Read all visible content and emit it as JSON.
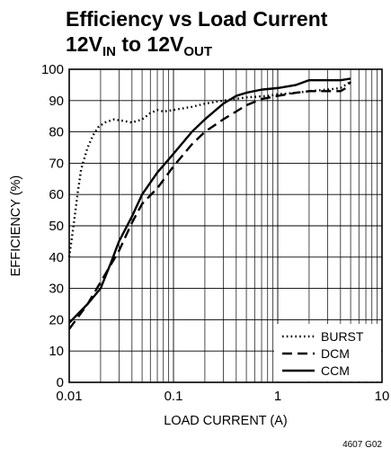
{
  "chart_data": {
    "type": "line",
    "title_line1": "Efficiency vs Load Current",
    "title_line2": {
      "a": "12V",
      "a_sub": "IN",
      "b": " to 12V",
      "b_sub": "OUT"
    },
    "xlabel": "LOAD CURRENT (A)",
    "ylabel": "EFFICIENCY (%)",
    "x_scale": "log",
    "xlim": [
      0.01,
      10
    ],
    "ylim": [
      0,
      100
    ],
    "x_ticks": [
      0.01,
      0.1,
      1,
      10
    ],
    "x_tick_labels": [
      "0.01",
      "0.1",
      "1",
      "10"
    ],
    "y_ticks": [
      0,
      10,
      20,
      30,
      40,
      50,
      60,
      70,
      80,
      90,
      100
    ],
    "y_tick_labels": [
      "0",
      "10",
      "20",
      "30",
      "40",
      "50",
      "60",
      "70",
      "80",
      "90",
      "100"
    ],
    "grid": true,
    "legend_position": "bottom-right",
    "figure_code": "4607 G02",
    "series": [
      {
        "name": "BURST",
        "style": "dotted",
        "points": [
          [
            0.01,
            40
          ],
          [
            0.011,
            50
          ],
          [
            0.012,
            60
          ],
          [
            0.013,
            68
          ],
          [
            0.015,
            75
          ],
          [
            0.017,
            79
          ],
          [
            0.019,
            81.5
          ],
          [
            0.022,
            83
          ],
          [
            0.027,
            84
          ],
          [
            0.033,
            83.5
          ],
          [
            0.04,
            83
          ],
          [
            0.05,
            84
          ],
          [
            0.06,
            86
          ],
          [
            0.07,
            87
          ],
          [
            0.08,
            86.5
          ],
          [
            0.1,
            87
          ],
          [
            0.15,
            88
          ],
          [
            0.2,
            89
          ],
          [
            0.3,
            90
          ],
          [
            0.5,
            91
          ],
          [
            0.8,
            91.5
          ],
          [
            1,
            92
          ],
          [
            1.5,
            92.5
          ],
          [
            2,
            93
          ],
          [
            3,
            93.5
          ],
          [
            4,
            94
          ],
          [
            5,
            96
          ]
        ]
      },
      {
        "name": "DCM",
        "style": "dashed",
        "points": [
          [
            0.01,
            17
          ],
          [
            0.015,
            25
          ],
          [
            0.02,
            32
          ],
          [
            0.03,
            42
          ],
          [
            0.04,
            51
          ],
          [
            0.05,
            57
          ],
          [
            0.07,
            62
          ],
          [
            0.1,
            69
          ],
          [
            0.15,
            76
          ],
          [
            0.2,
            80
          ],
          [
            0.3,
            84
          ],
          [
            0.5,
            88.5
          ],
          [
            0.7,
            90.5
          ],
          [
            1,
            91.5
          ],
          [
            1.5,
            92.5
          ],
          [
            2,
            93
          ],
          [
            3,
            93
          ],
          [
            4,
            93
          ],
          [
            4.5,
            94
          ],
          [
            5,
            96
          ]
        ]
      },
      {
        "name": "CCM",
        "style": "solid",
        "points": [
          [
            0.01,
            19
          ],
          [
            0.015,
            25
          ],
          [
            0.02,
            30
          ],
          [
            0.025,
            38
          ],
          [
            0.03,
            45
          ],
          [
            0.04,
            53
          ],
          [
            0.05,
            60
          ],
          [
            0.07,
            67
          ],
          [
            0.1,
            73
          ],
          [
            0.15,
            80
          ],
          [
            0.2,
            84
          ],
          [
            0.3,
            89
          ],
          [
            0.4,
            91.5
          ],
          [
            0.5,
            92.5
          ],
          [
            0.7,
            93.5
          ],
          [
            1,
            94
          ],
          [
            1.5,
            95
          ],
          [
            2,
            96.5
          ],
          [
            3,
            96.5
          ],
          [
            4,
            96.5
          ],
          [
            5,
            97
          ]
        ]
      }
    ]
  }
}
